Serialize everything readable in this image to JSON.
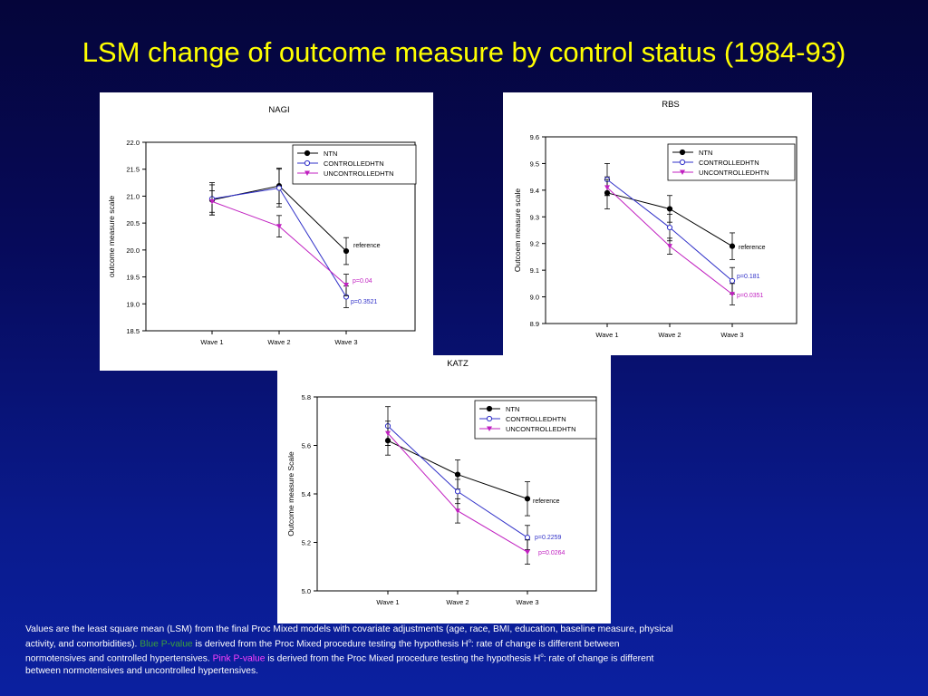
{
  "title": "LSM change of outcome measure by control status (1984-93)",
  "colors": {
    "NTN": "#000000",
    "CONTROLLEDHTN": "#3030c8",
    "UNCONTROLLEDHTN": "#c020c0",
    "title": "#ffff00"
  },
  "chart_data": [
    {
      "type": "line",
      "title": "NAGI",
      "ylabel": "outcome measure scale",
      "xlabel": "",
      "categories": [
        "Wave 1",
        "Wave 2",
        "Wave 3"
      ],
      "ylim": [
        18.5,
        22.0
      ],
      "yticks": [
        "22.0",
        "21.5",
        "21.0",
        "20.5",
        "20.0",
        "19.5",
        "19.0",
        "18.5"
      ],
      "grid": false,
      "legend_position": "top-right",
      "series": [
        {
          "name": "NTN",
          "values": [
            20.93,
            21.19,
            19.98
          ],
          "err": [
            0.28,
            0.33,
            0.25
          ]
        },
        {
          "name": "CONTROLLEDHTN",
          "values": [
            20.95,
            21.15,
            19.13
          ],
          "err": [
            0.3,
            0.35,
            0.2
          ]
        },
        {
          "name": "UNCONTROLLEDHTN",
          "values": [
            20.9,
            20.44,
            19.35
          ],
          "err": [
            0.2,
            0.2,
            0.2
          ]
        }
      ],
      "annotations": [
        "reference",
        "p=0.04",
        "p=0.3521"
      ]
    },
    {
      "type": "line",
      "title": "RBS",
      "ylabel": "Outcoem measure scale",
      "xlabel": "",
      "categories": [
        "Wave 1",
        "Wave 2",
        "Wave 3"
      ],
      "ylim": [
        8.9,
        9.6
      ],
      "yticks": [
        "9.6",
        "9.5",
        "9.4",
        "9.3",
        "9.2",
        "9.1",
        "9.0",
        "8.9"
      ],
      "grid": false,
      "legend_position": "top-right",
      "series": [
        {
          "name": "NTN",
          "values": [
            9.39,
            9.33,
            9.19
          ],
          "err": [
            0.06,
            0.05,
            0.05
          ]
        },
        {
          "name": "CONTROLLEDHTN",
          "values": [
            9.44,
            9.26,
            9.06
          ],
          "err": [
            0.06,
            0.05,
            0.05
          ]
        },
        {
          "name": "UNCONTROLLEDHTN",
          "values": [
            9.41,
            9.19,
            9.01
          ],
          "err": [
            0.03,
            0.03,
            0.04
          ]
        }
      ],
      "annotations": [
        "reference",
        "p=0.181",
        "p=0.0351"
      ]
    },
    {
      "type": "line",
      "title": "KATZ",
      "ylabel": "Outcome measure Scale",
      "xlabel": "",
      "categories": [
        "Wave 1",
        "Wave 2",
        "Wave 3"
      ],
      "ylim": [
        5.0,
        5.8
      ],
      "yticks": [
        "5.8",
        "5.6",
        "5.4",
        "5.2",
        "5.0"
      ],
      "grid": false,
      "legend_position": "top-right",
      "series": [
        {
          "name": "NTN",
          "values": [
            5.62,
            5.48,
            5.38
          ],
          "err": [
            0.06,
            0.06,
            0.07
          ]
        },
        {
          "name": "CONTROLLEDHTN",
          "values": [
            5.68,
            5.41,
            5.22
          ],
          "err": [
            0.08,
            0.05,
            0.05
          ]
        },
        {
          "name": "UNCONTROLLEDHTN",
          "values": [
            5.65,
            5.33,
            5.16
          ],
          "err": [
            0.05,
            0.05,
            0.05
          ]
        }
      ],
      "annotations": [
        "reference",
        "p=0.2259",
        "p=0.0264"
      ]
    }
  ],
  "footnote": {
    "part1": "Values are the least square mean (LSM) from the final Proc Mixed models with covariate adjustments (age, race, BMI, education, baseline measure, physical activity, and comorbidities). ",
    "blue_label": "Blue  P-value",
    "part2": " is derived from the Proc Mixed procedure testing the hypothesis H",
    "sup": "o",
    "part3": ": rate of change is different between normotensives and controlled hypertensives. ",
    "pink_label": "Pink P-value",
    "part4": " is derived from the Proc Mixed procedure testing the hypothesis H",
    "part5": ": rate of change is different between normotensives and uncontrolled hypertensives."
  }
}
